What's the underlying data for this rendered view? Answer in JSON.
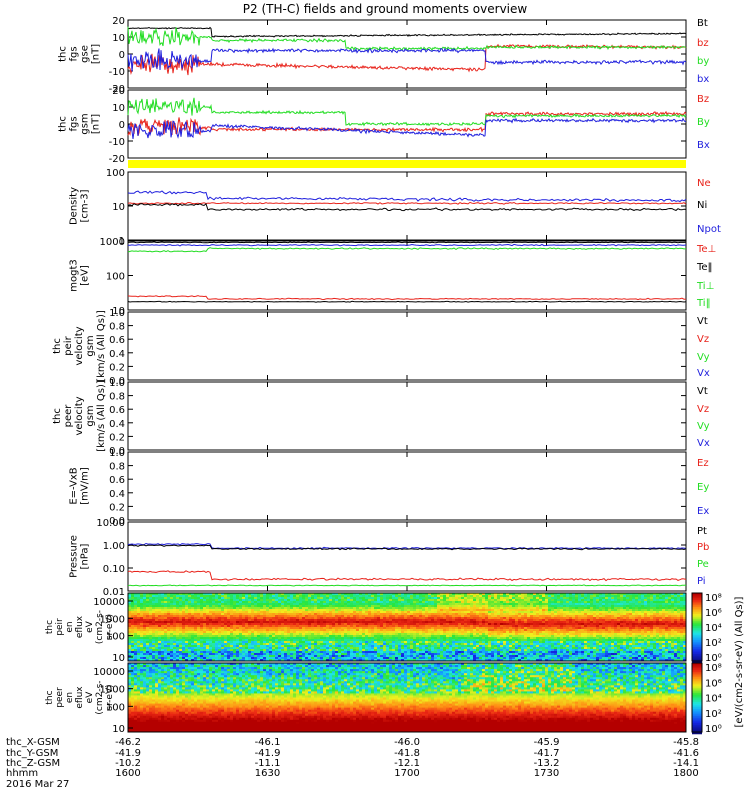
{
  "title": "P2 (TH-C) fields and ground moments overview",
  "colors": {
    "black": "#000000",
    "red": "#e8221a",
    "green": "#22dd22",
    "blue": "#1f1fdd",
    "yellow": "#ffff00"
  },
  "panels": [
    {
      "id": "fgs-gse",
      "ylabel": [
        "thc",
        "fgs",
        "gse",
        "[nT]"
      ],
      "ticks": [
        "20",
        "10",
        "0",
        "-10",
        "-20"
      ],
      "legend": [
        {
          "text": "Bt",
          "color": "black"
        },
        {
          "text": "bz",
          "color": "red"
        },
        {
          "text": "by",
          "color": "green"
        },
        {
          "text": "bx",
          "color": "blue"
        }
      ]
    },
    {
      "id": "fgs-gsm",
      "ylabel": [
        "thc",
        "fgs",
        "gsm",
        "[nT]"
      ],
      "ticks": [
        "20",
        "10",
        "0",
        "-10",
        "-20"
      ],
      "legend": [
        {
          "text": "Bz",
          "color": "red"
        },
        {
          "text": "By",
          "color": "green"
        },
        {
          "text": "Bx",
          "color": "blue"
        }
      ]
    },
    {
      "id": "density",
      "ylabel": [
        "Density",
        "[cm-3]"
      ],
      "ticks": [
        "100",
        "10",
        "1"
      ],
      "legend": [
        {
          "text": "Ne",
          "color": "red"
        },
        {
          "text": "Ni",
          "color": "black"
        },
        {
          "text": "Npot",
          "color": "blue"
        }
      ]
    },
    {
      "id": "temperature",
      "ylabel": [
        "mogt3",
        "[eV]"
      ],
      "ticks": [
        "1000",
        "100",
        "10"
      ],
      "legend": [
        {
          "text": "Te⊥",
          "color": "red"
        },
        {
          "text": "Te‖",
          "color": "black"
        },
        {
          "text": "Ti⊥",
          "color": "green"
        },
        {
          "text": "Ti‖",
          "color": "green"
        }
      ]
    },
    {
      "id": "peir-velocity",
      "ylabel": [
        "thc",
        "peir",
        "velocity",
        "gsm",
        "[km/s (All Qs)]"
      ],
      "ticks": [
        "1.0",
        "0.8",
        "0.6",
        "0.4",
        "0.2",
        "0.0"
      ],
      "legend": [
        {
          "text": "Vt",
          "color": "black"
        },
        {
          "text": "Vz",
          "color": "red"
        },
        {
          "text": "Vy",
          "color": "green"
        },
        {
          "text": "Vx",
          "color": "blue"
        }
      ]
    },
    {
      "id": "peer-velocity",
      "ylabel": [
        "thc",
        "peer",
        "velocity",
        "gsm",
        "[km/s (All Qs)]"
      ],
      "ticks": [
        "1.0",
        "0.8",
        "0.6",
        "0.4",
        "0.2",
        "0.0"
      ],
      "legend": [
        {
          "text": "Vt",
          "color": "black"
        },
        {
          "text": "Vz",
          "color": "red"
        },
        {
          "text": "Vy",
          "color": "green"
        },
        {
          "text": "Vx",
          "color": "blue"
        }
      ]
    },
    {
      "id": "efield",
      "ylabel": [
        "E=-VxB",
        "[mV/m]"
      ],
      "ticks": [
        "1.0",
        "0.8",
        "0.6",
        "0.4",
        "0.2",
        "0.0"
      ],
      "legend": [
        {
          "text": "Ez",
          "color": "red"
        },
        {
          "text": "Ey",
          "color": "green"
        },
        {
          "text": "Ex",
          "color": "blue"
        }
      ]
    },
    {
      "id": "pressure",
      "ylabel": [
        "Pressure",
        "[nPa]"
      ],
      "ticks": [
        "10.00",
        "1.00",
        "0.10",
        "0.01"
      ],
      "legend": [
        {
          "text": "Pt",
          "color": "black"
        },
        {
          "text": "Pb",
          "color": "red"
        },
        {
          "text": "Pe",
          "color": "green"
        },
        {
          "text": "Pi",
          "color": "blue"
        }
      ]
    }
  ],
  "spectrograms": [
    {
      "id": "peir-spectrogram",
      "ylabel": [
        "thc",
        "peir",
        "en",
        "eflux",
        "eV",
        "(cm2-s-",
        "sr-eV)"
      ],
      "ticks": [
        "10000",
        "1000",
        "100",
        "10"
      ]
    },
    {
      "id": "peer-spectrogram",
      "ylabel": [
        "thc",
        "peer",
        "en",
        "eflux",
        "eV",
        "(cm2-s-",
        "sr-eV)"
      ],
      "ticks": [
        "10000",
        "1000",
        "100",
        "10"
      ]
    }
  ],
  "colorbar_ticks": {
    "peir": [
      "10⁸",
      "10⁶",
      "10⁴",
      "10²",
      "10⁰"
    ],
    "peer": [
      "10⁸",
      "10⁶",
      "10⁴",
      "10²",
      "10⁰"
    ]
  },
  "colorbar_label": "[eV/(cm2-s-sr-eV) (All Qs)]",
  "xaxis": {
    "row_labels": [
      "thc_X-GSM",
      "thc_Y-GSM",
      "thc_Z-GSM",
      "hhmm",
      "2016 Mar 27"
    ],
    "columns": [
      {
        "x": "-46.2",
        "y": "-41.9",
        "z": "-10.2",
        "t": "1600"
      },
      {
        "x": "-46.1",
        "y": "-41.9",
        "z": "-11.1",
        "t": "1630"
      },
      {
        "x": "-46.0",
        "y": "-41.8",
        "z": "-12.1",
        "t": "1700"
      },
      {
        "x": "-45.9",
        "y": "-41.7",
        "z": "-13.2",
        "t": "1730"
      },
      {
        "x": "-45.8",
        "y": "-41.6",
        "z": "-14.1",
        "t": "1800"
      }
    ]
  },
  "chart_data": [
    {
      "type": "line",
      "title": "P2 (TH-C) fields and ground moments overview",
      "panel": "thc fgs gse [nT]",
      "x": [
        "1600",
        "1630",
        "1700",
        "1730",
        "1800"
      ],
      "ylim": [
        -20,
        20
      ],
      "series": [
        {
          "name": "Bt",
          "values": [
            14,
            11,
            10,
            9,
            9
          ]
        },
        {
          "name": "bz",
          "values": [
            -5,
            -7,
            -11,
            4,
            3
          ]
        },
        {
          "name": "by",
          "values": [
            10,
            8,
            4,
            6,
            3
          ]
        },
        {
          "name": "bx",
          "values": [
            -3,
            2,
            2,
            -4,
            -2
          ]
        }
      ]
    },
    {
      "type": "line",
      "panel": "thc fgs gsm [nT]",
      "x": [
        "1600",
        "1630",
        "1700",
        "1730",
        "1800"
      ],
      "ylim": [
        -20,
        20
      ],
      "series": [
        {
          "name": "Bz",
          "values": [
            -3,
            -3,
            -2,
            8,
            9
          ]
        },
        {
          "name": "By",
          "values": [
            10,
            4,
            0,
            6,
            5
          ]
        },
        {
          "name": "Bx",
          "values": [
            -3,
            2,
            -8,
            3,
            2
          ]
        }
      ]
    },
    {
      "type": "line",
      "panel": "Density [cm-3]",
      "x": [
        "1600",
        "1630",
        "1700",
        "1730",
        "1800"
      ],
      "yscale": "log",
      "ylim": [
        1,
        100
      ],
      "series": [
        {
          "name": "Ne",
          "values": [
            12,
            11,
            11,
            11,
            11
          ]
        },
        {
          "name": "Ni",
          "values": [
            9,
            7,
            7,
            8,
            9
          ]
        },
        {
          "name": "Npot",
          "values": [
            25,
            18,
            18,
            16,
            14
          ]
        }
      ]
    },
    {
      "type": "line",
      "panel": "mogt3 [eV]",
      "x": [
        "1600",
        "1630",
        "1700",
        "1730",
        "1800"
      ],
      "yscale": "log",
      "ylim": [
        10,
        1000
      ],
      "series": [
        {
          "name": "Te⊥",
          "values": [
            22,
            20,
            20,
            20,
            21
          ]
        },
        {
          "name": "Te‖",
          "values": [
            18,
            17,
            17,
            17,
            17
          ]
        },
        {
          "name": "Ti⊥",
          "values": [
            900,
            950,
            950,
            950,
            950
          ]
        },
        {
          "name": "Ti‖",
          "values": [
            600,
            650,
            650,
            650,
            650
          ]
        }
      ]
    },
    {
      "type": "line",
      "panel": "thc peir velocity gsm [km/s (All Qs)]",
      "ylim": [
        0,
        1
      ],
      "series": []
    },
    {
      "type": "line",
      "panel": "thc peer velocity gsm [km/s (All Qs)]",
      "ylim": [
        0,
        1
      ],
      "series": []
    },
    {
      "type": "line",
      "panel": "E=-VxB [mV/m]",
      "ylim": [
        0,
        1
      ],
      "series": []
    },
    {
      "type": "line",
      "panel": "Pressure [nPa]",
      "x": [
        "1600",
        "1630",
        "1700",
        "1730",
        "1800"
      ],
      "yscale": "log",
      "ylim": [
        0.01,
        10
      ],
      "series": [
        {
          "name": "Pt",
          "values": [
            1.4,
            0.9,
            0.9,
            0.9,
            0.8
          ]
        },
        {
          "name": "Pb",
          "values": [
            0.08,
            0.04,
            0.04,
            0.04,
            0.04
          ]
        },
        {
          "name": "Pe",
          "values": [
            0.02,
            0.02,
            0.02,
            0.02,
            0.02
          ]
        },
        {
          "name": "Pi",
          "values": [
            1.3,
            0.85,
            0.85,
            0.85,
            0.75
          ]
        }
      ]
    },
    {
      "type": "heatmap",
      "panel": "thc peir en eflux eV (cm2-s-sr-eV)",
      "yscale": "log",
      "ylim": [
        10,
        10000
      ],
      "zlim": [
        1,
        100000000
      ]
    },
    {
      "type": "heatmap",
      "panel": "thc peer en eflux eV (cm2-s-sr-eV)",
      "yscale": "log",
      "ylim": [
        10,
        10000
      ],
      "zlim": [
        1,
        100000000
      ]
    }
  ]
}
